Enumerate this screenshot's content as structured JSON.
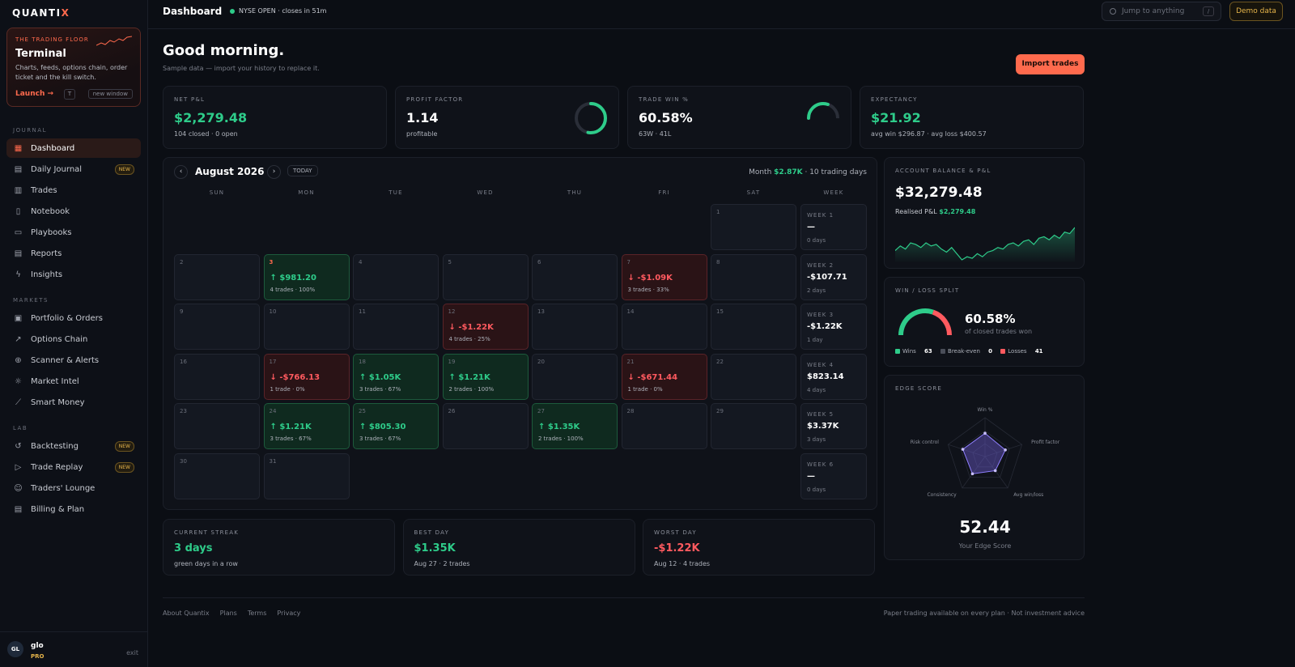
{
  "brand": {
    "name_a": "QUANTI",
    "name_b": "X"
  },
  "terminal": {
    "kicker": "THE TRADING FLOOR",
    "title": "Terminal",
    "desc": "Charts, feeds, options chain, order ticket and the kill switch.",
    "launch": "Launch →",
    "key": "T",
    "new_window": "new window"
  },
  "nav": {
    "journal_label": "JOURNAL",
    "journal": [
      {
        "label": "Dashboard",
        "icon": "grid-icon",
        "active": true
      },
      {
        "label": "Daily Journal",
        "icon": "calendar-icon",
        "badge": "NEW"
      },
      {
        "label": "Trades",
        "icon": "bar-chart-icon"
      },
      {
        "label": "Notebook",
        "icon": "notebook-icon"
      },
      {
        "label": "Playbooks",
        "icon": "book-icon"
      },
      {
        "label": "Reports",
        "icon": "report-icon"
      },
      {
        "label": "Insights",
        "icon": "bolt-icon"
      }
    ],
    "markets_label": "MARKETS",
    "markets": [
      {
        "label": "Portfolio & Orders",
        "icon": "portfolio-icon"
      },
      {
        "label": "Options Chain",
        "icon": "trend-icon"
      },
      {
        "label": "Scanner & Alerts",
        "icon": "scanner-icon"
      },
      {
        "label": "Market Intel",
        "icon": "sun-icon"
      },
      {
        "label": "Smart Money",
        "icon": "line-chart-icon"
      }
    ],
    "lab_label": "LAB",
    "lab": [
      {
        "label": "Backtesting",
        "icon": "history-icon",
        "badge": "NEW"
      },
      {
        "label": "Trade Replay",
        "icon": "play-icon",
        "badge": "NEW"
      },
      {
        "label": "Traders' Lounge",
        "icon": "users-icon"
      },
      {
        "label": "Billing & Plan",
        "icon": "billing-icon"
      }
    ]
  },
  "user": {
    "initials": "GL",
    "name": "glo",
    "plan": "PRO",
    "exit": "exit"
  },
  "topbar": {
    "title": "Dashboard",
    "market_status": "NYSE OPEN · closes in 51m",
    "search_placeholder": "Jump to anything",
    "search_key": "/",
    "demo": "Demo data"
  },
  "hero": {
    "greeting": "Good morning.",
    "subtitle": "Sample data — import your history to replace it.",
    "import": "Import trades"
  },
  "kpis": [
    {
      "label": "NET P&L",
      "value": "$2,279.48",
      "sub": "104 closed · 0 open",
      "tone": "green"
    },
    {
      "label": "PROFIT FACTOR",
      "value": "1.14",
      "sub": "profitable",
      "tone": "white",
      "gauge": 0.53
    },
    {
      "label": "TRADE WIN %",
      "value": "60.58%",
      "sub": "63W · 41L",
      "tone": "white",
      "gauge": 0.6058
    },
    {
      "label": "EXPECTANCY",
      "value": "$21.92",
      "sub": "avg win $296.87 · avg loss $400.57",
      "tone": "green"
    }
  ],
  "calendar": {
    "month": "August 2026",
    "today": "TODAY",
    "summary_prefix": "Month",
    "summary_value": "$2.87K",
    "summary_suffix": "· 10 trading days",
    "dow": [
      "SUN",
      "MON",
      "TUE",
      "WED",
      "THU",
      "FRI",
      "SAT",
      "WEEK"
    ],
    "days": [
      {
        "d": "1",
        "row": 0,
        "col": 6
      },
      {
        "d": "2",
        "row": 1,
        "col": 0
      },
      {
        "d": "3",
        "row": 1,
        "col": 1,
        "pnl": "↑ $981.20",
        "trades": "4 trades · 100%",
        "tone": "g",
        "hi": true
      },
      {
        "d": "4",
        "row": 1,
        "col": 2
      },
      {
        "d": "5",
        "row": 1,
        "col": 3
      },
      {
        "d": "6",
        "row": 1,
        "col": 4
      },
      {
        "d": "7",
        "row": 1,
        "col": 5,
        "pnl": "↓ -$1.09K",
        "trades": "3 trades · 33%",
        "tone": "r"
      },
      {
        "d": "8",
        "row": 1,
        "col": 6
      },
      {
        "d": "9",
        "row": 2,
        "col": 0
      },
      {
        "d": "10",
        "row": 2,
        "col": 1
      },
      {
        "d": "11",
        "row": 2,
        "col": 2
      },
      {
        "d": "12",
        "row": 2,
        "col": 3,
        "pnl": "↓ -$1.22K",
        "trades": "4 trades · 25%",
        "tone": "r"
      },
      {
        "d": "13",
        "row": 2,
        "col": 4
      },
      {
        "d": "14",
        "row": 2,
        "col": 5
      },
      {
        "d": "15",
        "row": 2,
        "col": 6
      },
      {
        "d": "16",
        "row": 3,
        "col": 0
      },
      {
        "d": "17",
        "row": 3,
        "col": 1,
        "pnl": "↓ -$766.13",
        "trades": "1 trade · 0%",
        "tone": "r"
      },
      {
        "d": "18",
        "row": 3,
        "col": 2,
        "pnl": "↑ $1.05K",
        "trades": "3 trades · 67%",
        "tone": "g"
      },
      {
        "d": "19",
        "row": 3,
        "col": 3,
        "pnl": "↑ $1.21K",
        "trades": "2 trades · 100%",
        "tone": "g"
      },
      {
        "d": "20",
        "row": 3,
        "col": 4
      },
      {
        "d": "21",
        "row": 3,
        "col": 5,
        "pnl": "↓ -$671.44",
        "trades": "1 trade · 0%",
        "tone": "r"
      },
      {
        "d": "22",
        "row": 3,
        "col": 6
      },
      {
        "d": "23",
        "row": 4,
        "col": 0
      },
      {
        "d": "24",
        "row": 4,
        "col": 1,
        "pnl": "↑ $1.21K",
        "trades": "3 trades · 67%",
        "tone": "g"
      },
      {
        "d": "25",
        "row": 4,
        "col": 2,
        "pnl": "↑ $805.30",
        "trades": "3 trades · 67%",
        "tone": "g"
      },
      {
        "d": "26",
        "row": 4,
        "col": 3
      },
      {
        "d": "27",
        "row": 4,
        "col": 4,
        "pnl": "↑ $1.35K",
        "trades": "2 trades · 100%",
        "tone": "g"
      },
      {
        "d": "28",
        "row": 4,
        "col": 5
      },
      {
        "d": "29",
        "row": 4,
        "col": 6
      },
      {
        "d": "30",
        "row": 5,
        "col": 0
      },
      {
        "d": "31",
        "row": 5,
        "col": 1
      }
    ],
    "weeks": [
      {
        "label": "WEEK 1",
        "value": "—",
        "days": "0 days",
        "tone": "white"
      },
      {
        "label": "WEEK 2",
        "value": "-$107.71",
        "days": "2 days",
        "tone": "red"
      },
      {
        "label": "WEEK 3",
        "value": "-$1.22K",
        "days": "1 day",
        "tone": "red"
      },
      {
        "label": "WEEK 4",
        "value": "$823.14",
        "days": "4 days",
        "tone": "green"
      },
      {
        "label": "WEEK 5",
        "value": "$3.37K",
        "days": "3 days",
        "tone": "green"
      },
      {
        "label": "WEEK 6",
        "value": "—",
        "days": "0 days",
        "tone": "white"
      }
    ]
  },
  "stats": [
    {
      "label": "CURRENT STREAK",
      "value": "3 days",
      "sub": "green days in a row",
      "tone": "green"
    },
    {
      "label": "BEST DAY",
      "value": "$1.35K",
      "sub": "Aug 27 · 2 trades",
      "tone": "green"
    },
    {
      "label": "WORST DAY",
      "value": "-$1.22K",
      "sub": "Aug 12 · 4 trades",
      "tone": "red"
    }
  ],
  "balance": {
    "label": "ACCOUNT BALANCE & P&L",
    "value": "$32,279.48",
    "realised_label": "Realised P&L",
    "realised_value": "$2,279.48",
    "chart_data": {
      "type": "area",
      "values": [
        30.1,
        30.4,
        30.2,
        30.6,
        30.5,
        30.3,
        30.6,
        30.4,
        30.5,
        30.2,
        30.0,
        30.3,
        29.9,
        29.5,
        29.7,
        29.6,
        29.9,
        29.7,
        30.0,
        30.1,
        30.3,
        30.2,
        30.5,
        30.6,
        30.4,
        30.7,
        30.8,
        30.5,
        30.9,
        31.0,
        30.8,
        31.1,
        30.9,
        31.3,
        31.2,
        31.6
      ]
    }
  },
  "winloss": {
    "label": "WIN / LOSS SPLIT",
    "value": "60.58%",
    "sub": "of closed trades won",
    "wins_label": "Wins",
    "wins": "63",
    "be_label": "Break-even",
    "be": "0",
    "losses_label": "Losses",
    "losses": "41",
    "win_color": "#2ecc8a",
    "loss_color": "#ff5a5f"
  },
  "edge": {
    "label": "EDGE SCORE",
    "axes": [
      "Win %",
      "Profit factor",
      "Avg win/loss",
      "Consistency",
      "Risk control"
    ],
    "values": [
      0.6,
      0.55,
      0.45,
      0.55,
      0.6
    ],
    "score": "52.44",
    "score_label": "Your Edge Score"
  },
  "footer": {
    "links": [
      "About Quantix",
      "Plans",
      "Terms",
      "Privacy"
    ],
    "note": "Paper trading available on every plan · Not investment advice"
  }
}
